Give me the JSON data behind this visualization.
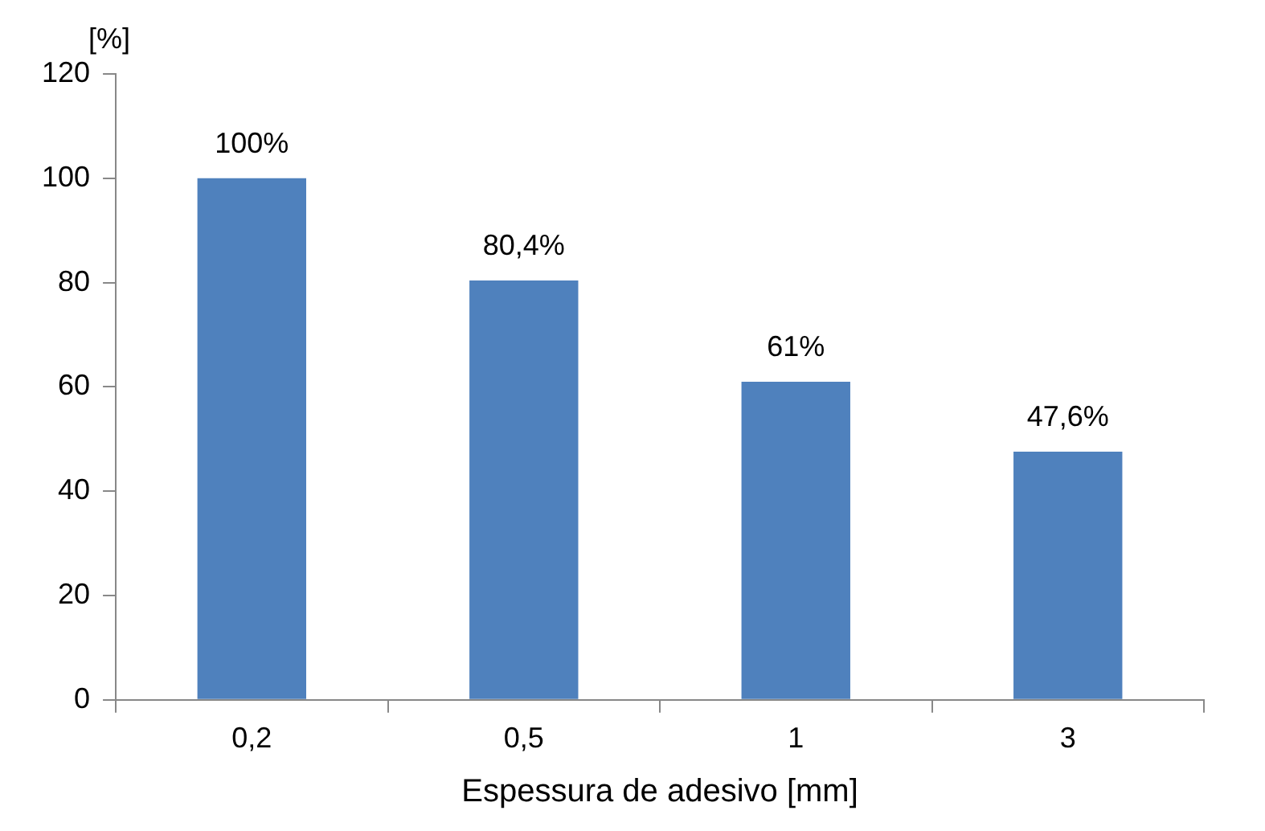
{
  "chart_data": {
    "type": "bar",
    "xlabel": "Espessura de adesivo [mm]",
    "ylabel": "[%]",
    "categories": [
      "0,2",
      "0,5",
      "1",
      "3"
    ],
    "values": [
      100,
      80.4,
      61,
      47.6
    ],
    "value_labels": [
      "100%",
      "80,4%",
      "61%",
      "47,6%"
    ],
    "color": "#4f81bd",
    "ylim": [
      0,
      120
    ],
    "yticks": [
      0,
      20,
      40,
      60,
      80,
      100,
      120
    ],
    "grid": false,
    "legend": false
  }
}
